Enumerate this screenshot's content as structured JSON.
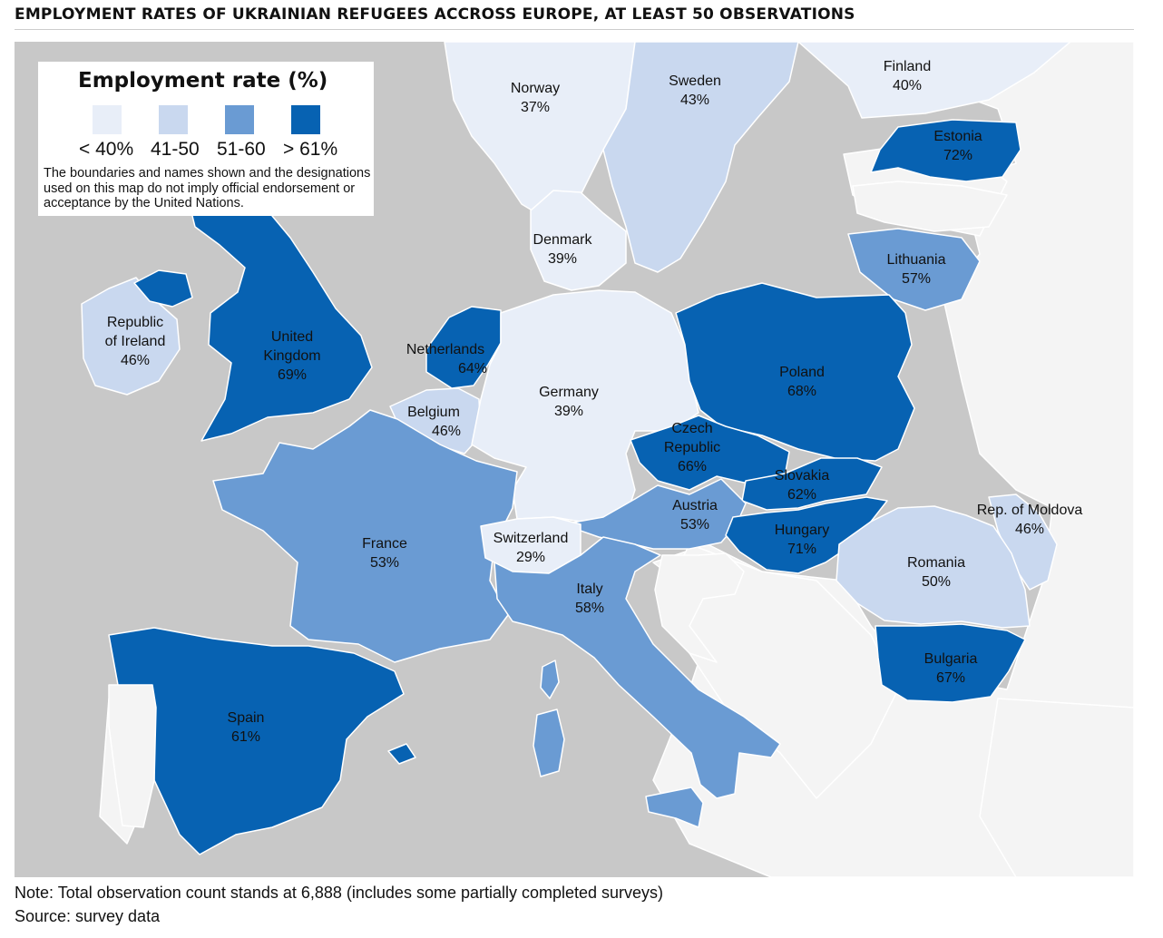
{
  "title": "EMPLOYMENT RATES OF UKRAINIAN REFUGEES ACCROSS EUROPE, AT LEAST 50 OBSERVATIONS",
  "colors": {
    "sea": "#c8c8c8",
    "no_data": "#f4f4f4",
    "bin_under_40": "#e8eef8",
    "bin_41_50": "#c9d8ef",
    "bin_51_60": "#6a9bd3",
    "bin_over_61": "#0762b2"
  },
  "legend": {
    "title": "Employment rate (%)",
    "bins": [
      {
        "label": "< 40%",
        "color": "#e8eef8"
      },
      {
        "label": "41-50",
        "color": "#c9d8ef"
      },
      {
        "label": "51-60",
        "color": "#6a9bd3"
      },
      {
        "label": "> 61%",
        "color": "#0762b2"
      }
    ],
    "disclaimer": "The boundaries and names shown and the designations used on this map do not imply official endorsement or acceptance by the United Nations."
  },
  "countries": {
    "norway": {
      "name": "Norway",
      "rate": "37%"
    },
    "sweden": {
      "name": "Sweden",
      "rate": "43%"
    },
    "finland": {
      "name": "Finland",
      "rate": "40%"
    },
    "estonia": {
      "name": "Estonia",
      "rate": "72%"
    },
    "denmark": {
      "name": "Denmark",
      "rate": "39%"
    },
    "lithuania": {
      "name": "Lithuania",
      "rate": "57%"
    },
    "ireland": {
      "name_line1": "Republic",
      "name_line2": "of Ireland",
      "rate": "46%"
    },
    "uk": {
      "name_line1": "United",
      "name_line2": "Kingdom",
      "rate": "69%"
    },
    "netherlands": {
      "name": "Netherlands",
      "rate": "64%"
    },
    "germany": {
      "name": "Germany",
      "rate": "39%"
    },
    "poland": {
      "name": "Poland",
      "rate": "68%"
    },
    "belgium": {
      "name": "Belgium",
      "rate": "46%"
    },
    "czech": {
      "name_line1": "Czech",
      "name_line2": "Republic",
      "rate": "66%"
    },
    "slovakia": {
      "name": "Slovakia",
      "rate": "62%"
    },
    "austria": {
      "name": "Austria",
      "rate": "53%"
    },
    "moldova": {
      "name": "Rep. of Moldova",
      "rate": "46%"
    },
    "hungary": {
      "name": "Hungary",
      "rate": "71%"
    },
    "france": {
      "name": "France",
      "rate": "53%"
    },
    "switzerland": {
      "name": "Switzerland",
      "rate": "29%"
    },
    "romania": {
      "name": "Romania",
      "rate": "50%"
    },
    "italy": {
      "name": "Italy",
      "rate": "58%"
    },
    "bulgaria": {
      "name": "Bulgaria",
      "rate": "67%"
    },
    "spain": {
      "name": "Spain",
      "rate": "61%"
    }
  },
  "footnotes": {
    "note": "Note: Total observation count stands at 6,888 (includes some partially completed surveys)",
    "source": "Source: survey data"
  }
}
